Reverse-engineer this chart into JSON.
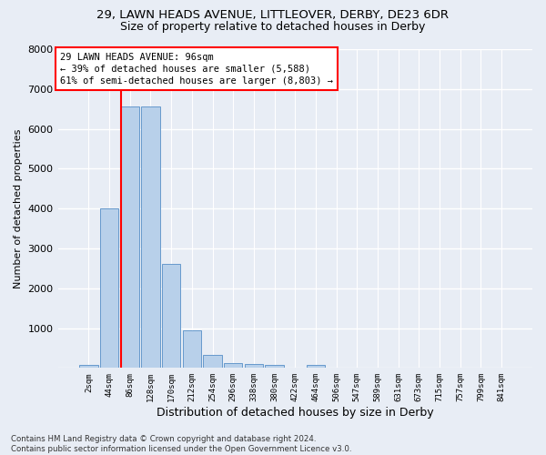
{
  "title1": "29, LAWN HEADS AVENUE, LITTLEOVER, DERBY, DE23 6DR",
  "title2": "Size of property relative to detached houses in Derby",
  "xlabel": "Distribution of detached houses by size in Derby",
  "ylabel": "Number of detached properties",
  "bar_values": [
    70,
    4000,
    6550,
    6550,
    2600,
    950,
    330,
    130,
    110,
    80,
    0,
    80,
    0,
    0,
    0,
    0,
    0,
    0,
    0,
    0,
    0
  ],
  "bar_labels": [
    "2sqm",
    "44sqm",
    "86sqm",
    "128sqm",
    "170sqm",
    "212sqm",
    "254sqm",
    "296sqm",
    "338sqm",
    "380sqm",
    "422sqm",
    "464sqm",
    "506sqm",
    "547sqm",
    "589sqm",
    "631sqm",
    "673sqm",
    "715sqm",
    "757sqm",
    "799sqm",
    "841sqm"
  ],
  "bar_color": "#b8d0ea",
  "bar_edge_color": "#6699cc",
  "red_line_bin": 2,
  "annotation_text": "29 LAWN HEADS AVENUE: 96sqm\n← 39% of detached houses are smaller (5,588)\n61% of semi-detached houses are larger (8,803) →",
  "annotation_box_color": "white",
  "annotation_box_edge": "red",
  "ylim": [
    0,
    8000
  ],
  "yticks": [
    0,
    1000,
    2000,
    3000,
    4000,
    5000,
    6000,
    7000,
    8000
  ],
  "footnote": "Contains HM Land Registry data © Crown copyright and database right 2024.\nContains public sector information licensed under the Open Government Licence v3.0.",
  "background_color": "#e8edf5",
  "grid_color": "white",
  "title1_fontsize": 9.5,
  "title2_fontsize": 9
}
